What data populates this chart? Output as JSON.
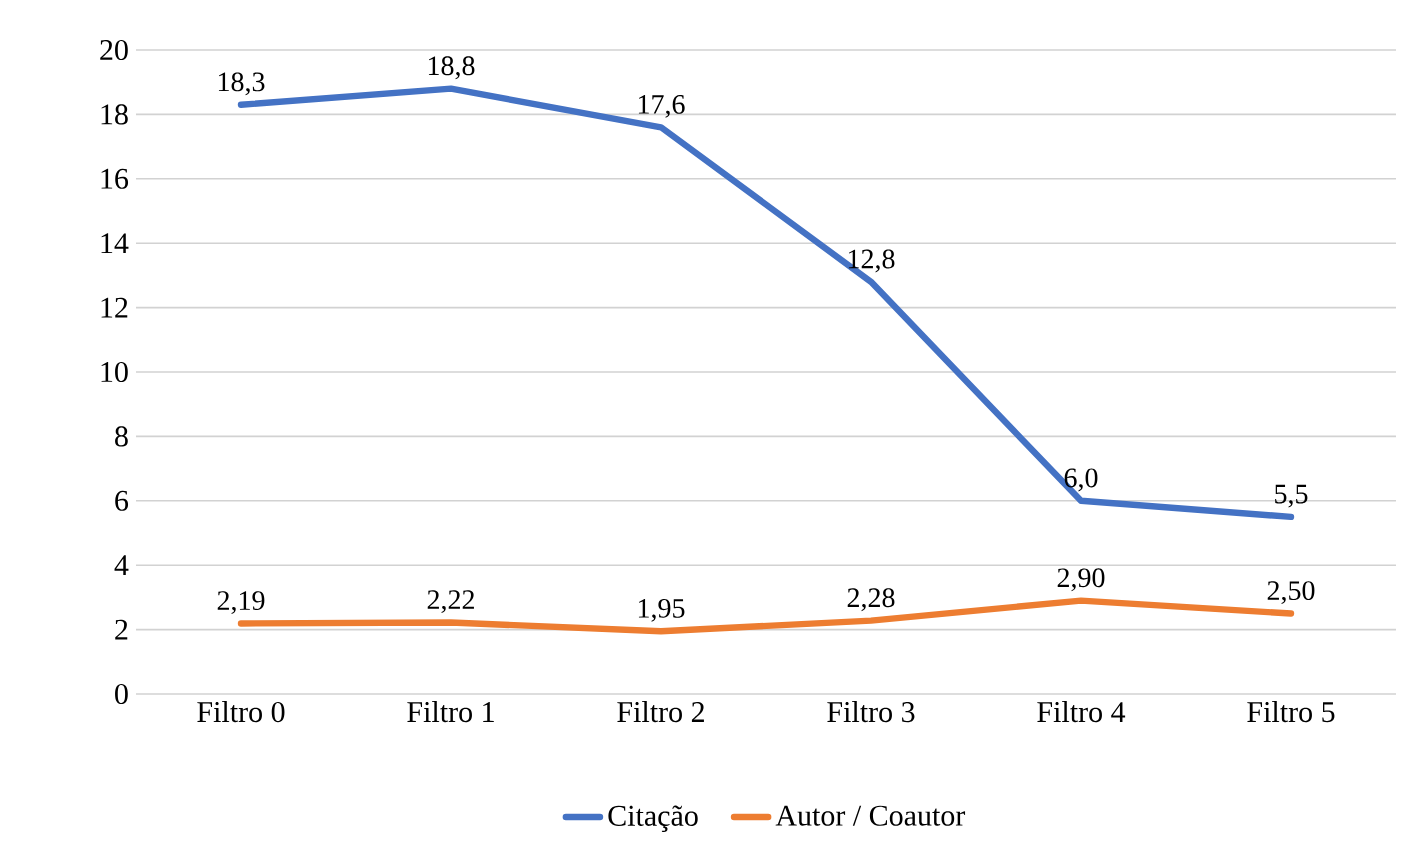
{
  "chart_data": {
    "type": "line",
    "categories": [
      "Filtro 0",
      "Filtro 1",
      "Filtro 2",
      "Filtro 3",
      "Filtro 4",
      "Filtro 5"
    ],
    "series": [
      {
        "name": "Citação",
        "color": "#4472c4",
        "values": [
          18.3,
          18.8,
          17.6,
          12.8,
          6.0,
          5.5
        ],
        "value_labels": [
          "18,3",
          "18,8",
          "17,6",
          "12,8",
          "6,0",
          "5,5"
        ]
      },
      {
        "name": "Autor / Coautor",
        "color": "#ed7d31",
        "values": [
          2.19,
          2.22,
          1.95,
          2.28,
          2.9,
          2.5
        ],
        "value_labels": [
          "2,19",
          "2,22",
          "1,95",
          "2,28",
          "2,90",
          "2,50"
        ]
      }
    ],
    "ylim": [
      0,
      20
    ],
    "yticks": [
      0,
      2,
      4,
      6,
      8,
      10,
      12,
      14,
      16,
      18,
      20
    ],
    "grid": "y",
    "legend": "bottom",
    "marker": "none",
    "line_style": "solid"
  }
}
